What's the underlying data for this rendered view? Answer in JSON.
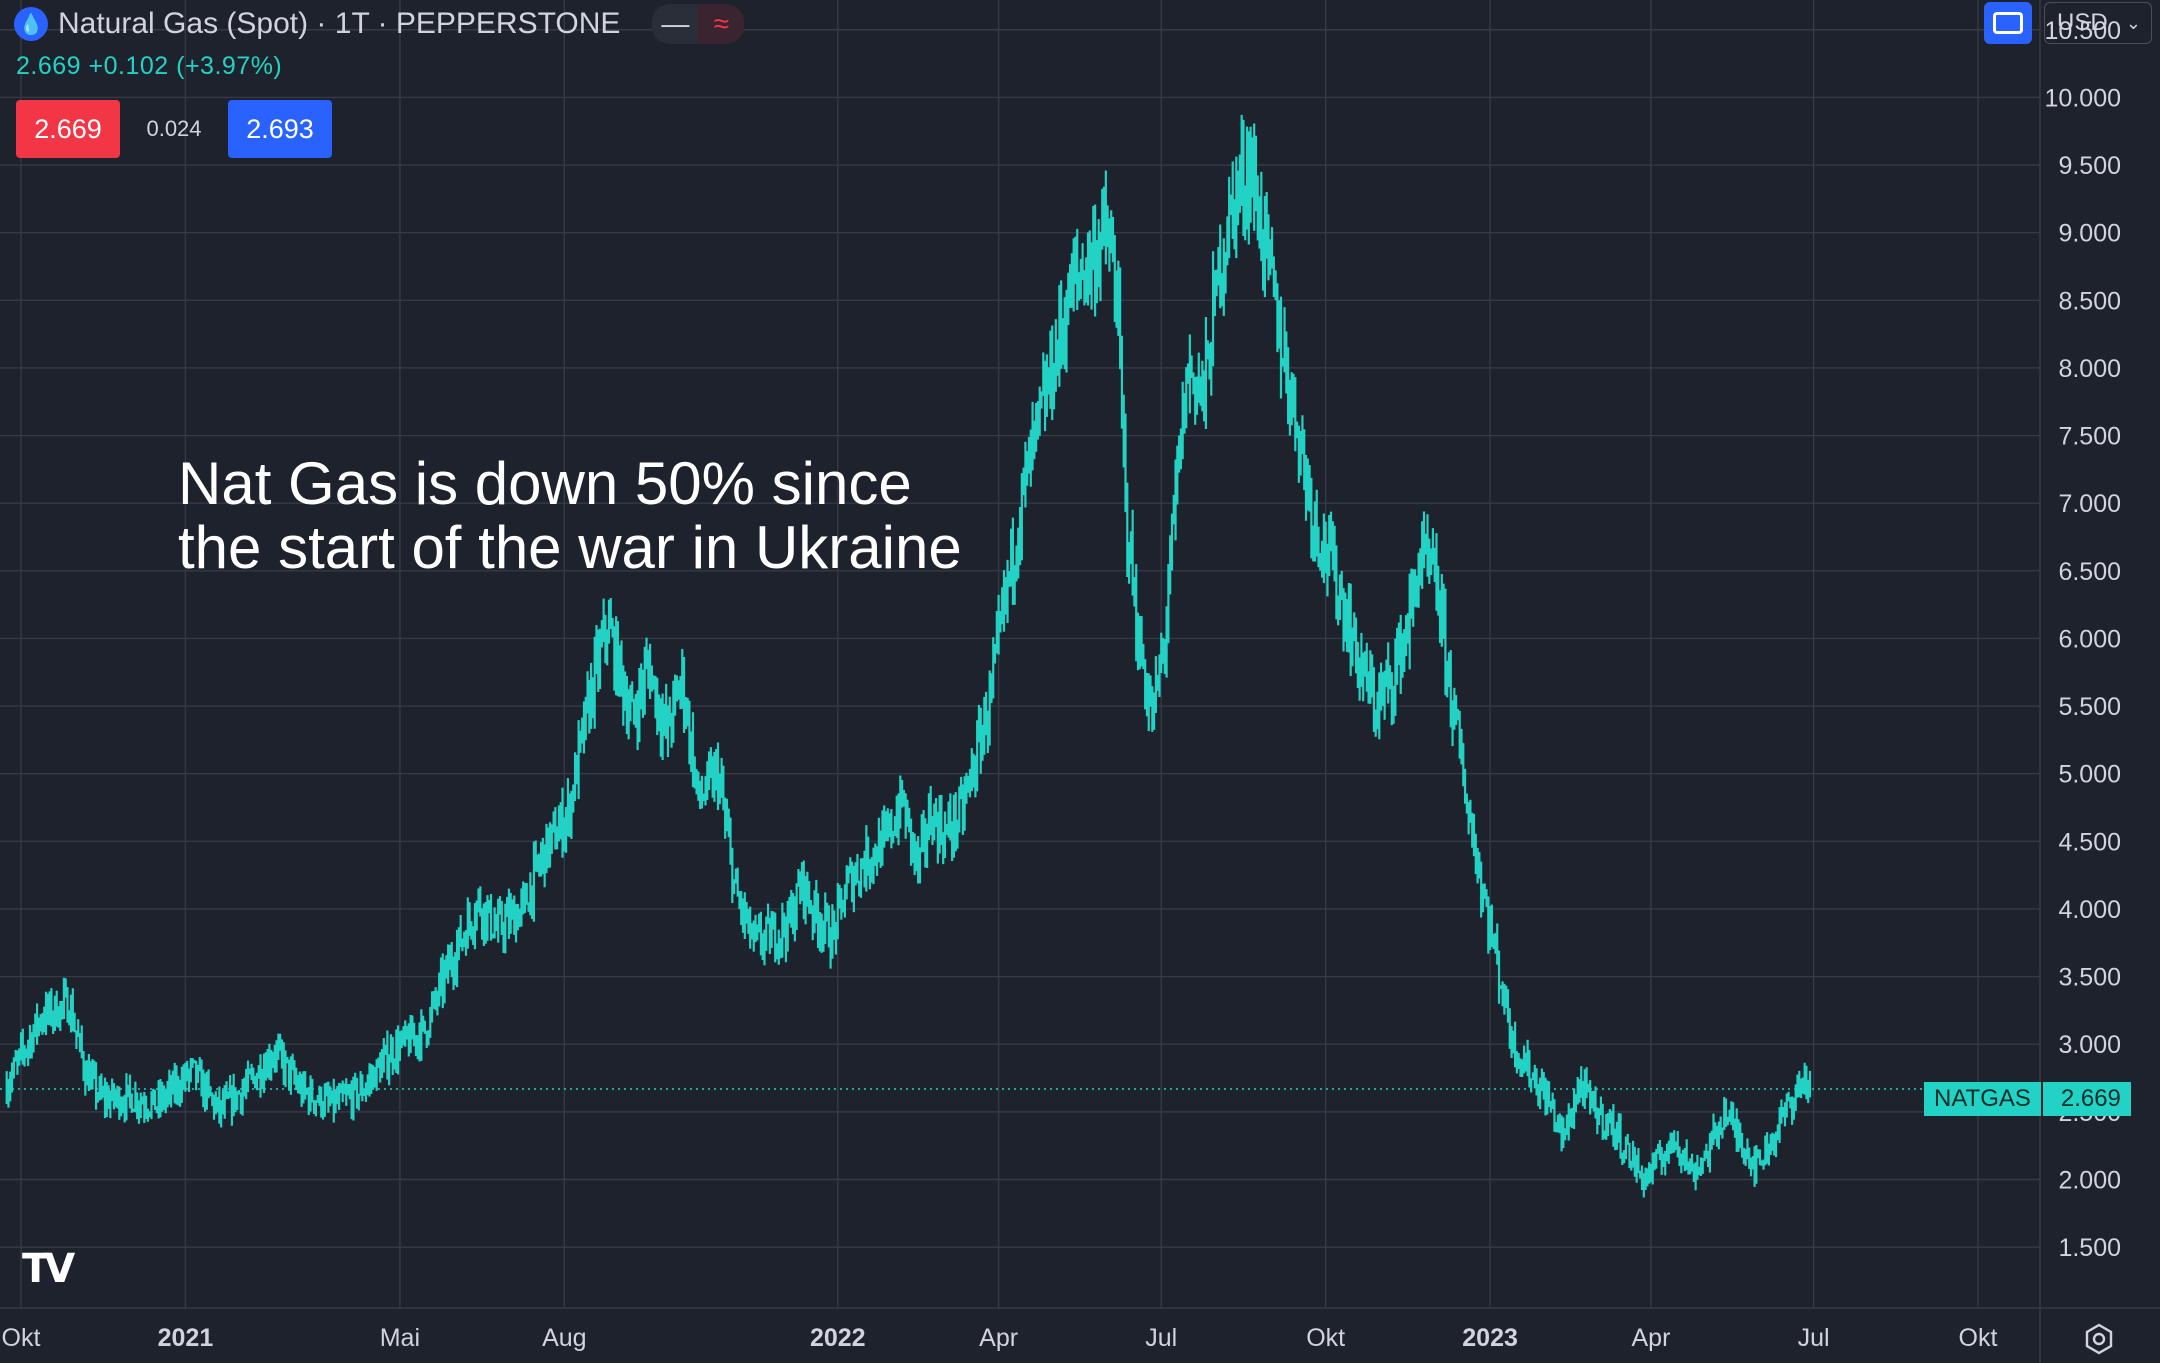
{
  "header": {
    "symbol_icon": "flame-drop-icon",
    "title": "Natural Gas (Spot) · 1T · PEPPERSTONE",
    "change_text": "2.669  +0.102 (+3.97%)",
    "sell_price": "2.669",
    "spread": "0.024",
    "buy_price": "2.693"
  },
  "annotation": {
    "line1": "Nat Gas is down 50% since",
    "line2": "the start of the war in Ukraine"
  },
  "toolbar": {
    "currency": "USD",
    "currency_chevron": "⌄",
    "fit_icon": "auto-fit-icon"
  },
  "last_price_tag": {
    "symbol": "NATGAS",
    "value": "2.669"
  },
  "logo": "TV",
  "colors": {
    "background": "#1e222d",
    "line": "#22d3c5",
    "sell": "#f23645",
    "buy": "#2962ff",
    "grid": "#363a45"
  },
  "chart_data": {
    "type": "line",
    "series": [
      {
        "name": "NATGAS",
        "x": [
          "2020-09-23",
          "2020-10-12",
          "2020-10-28",
          "2020-11-06",
          "2020-11-15",
          "2020-12-04",
          "2020-12-16",
          "2021-01-05",
          "2021-01-20",
          "2021-02-05",
          "2021-02-20",
          "2021-03-07",
          "2021-03-24",
          "2021-04-09",
          "2021-04-27",
          "2021-05-15",
          "2021-05-29",
          "2021-06-14",
          "2021-06-24",
          "2021-07-09",
          "2021-07-20",
          "2021-08-03",
          "2021-08-16",
          "2021-08-25",
          "2021-09-08",
          "2021-09-17",
          "2021-09-27",
          "2021-10-06",
          "2021-10-15",
          "2021-10-26",
          "2021-11-05",
          "2021-11-15",
          "2021-11-25",
          "2021-12-05",
          "2021-12-12",
          "2021-12-18",
          "2021-12-29",
          "2022-01-07",
          "2022-01-19",
          "2022-01-28",
          "2022-02-06",
          "2022-02-15",
          "2022-02-22",
          "2022-03-02",
          "2022-03-11",
          "2022-03-19",
          "2022-03-28",
          "2022-04-06",
          "2022-04-15",
          "2022-04-24",
          "2022-05-03",
          "2022-05-12",
          "2022-05-22",
          "2022-05-31",
          "2022-06-06",
          "2022-06-11",
          "2022-06-18",
          "2022-06-26",
          "2022-07-03",
          "2022-07-10",
          "2022-07-16",
          "2022-07-25",
          "2022-08-03",
          "2022-08-12",
          "2022-08-20",
          "2022-08-28",
          "2022-09-06",
          "2022-09-15",
          "2022-09-24",
          "2022-10-03",
          "2022-10-12",
          "2022-10-20",
          "2022-10-29",
          "2022-11-07",
          "2022-11-16",
          "2022-11-23",
          "2022-12-02",
          "2022-12-10",
          "2022-12-19",
          "2022-12-27",
          "2023-01-05",
          "2023-01-14",
          "2023-01-23",
          "2023-02-02",
          "2023-02-11",
          "2023-02-20",
          "2023-03-01",
          "2023-03-10",
          "2023-03-19",
          "2023-03-28",
          "2023-04-06",
          "2023-04-15",
          "2023-04-24",
          "2023-05-03",
          "2023-05-12",
          "2023-05-21",
          "2023-05-30",
          "2023-06-08",
          "2023-06-17",
          "2023-06-26",
          "2023-06-29"
        ],
        "y": [
          2.7,
          3.2,
          3.3,
          2.8,
          2.6,
          2.6,
          2.55,
          2.8,
          2.5,
          2.7,
          2.95,
          2.65,
          2.55,
          2.65,
          2.95,
          3.1,
          3.6,
          4.05,
          3.85,
          4.0,
          4.4,
          4.7,
          5.6,
          6.1,
          5.4,
          5.8,
          5.3,
          5.7,
          4.8,
          5.0,
          4.1,
          3.75,
          3.8,
          3.9,
          4.2,
          4.0,
          3.8,
          4.2,
          4.4,
          4.5,
          4.8,
          4.3,
          4.7,
          4.55,
          4.7,
          5.1,
          5.6,
          6.4,
          7.1,
          7.6,
          8.1,
          8.6,
          8.8,
          9.0,
          8.6,
          7.0,
          6.0,
          5.4,
          6.0,
          7.2,
          8.0,
          7.8,
          8.8,
          9.3,
          9.5,
          8.9,
          8.2,
          7.6,
          6.9,
          6.6,
          6.2,
          5.8,
          5.5,
          5.7,
          6.1,
          6.6,
          6.4,
          5.6,
          4.8,
          4.2,
          3.6,
          3.0,
          2.8,
          2.6,
          2.3,
          2.7,
          2.5,
          2.4,
          2.2,
          2.0,
          2.15,
          2.3,
          2.05,
          2.2,
          2.5,
          2.3,
          2.1,
          2.3,
          2.55,
          2.75,
          2.669
        ]
      }
    ],
    "ylim": [
      1.05,
      10.72
    ],
    "y_ticks": [
      "1.500",
      "2.000",
      "2.500",
      "3.000",
      "3.500",
      "4.000",
      "4.500",
      "5.000",
      "5.500",
      "6.000",
      "6.500",
      "7.000",
      "7.500",
      "8.000",
      "8.500",
      "9.000",
      "9.500",
      "10.000",
      "10.500"
    ],
    "x_ticks": [
      {
        "date": "2020-10-01",
        "label": "Okt",
        "bold": false
      },
      {
        "date": "2021-01-01",
        "label": "2021",
        "bold": true
      },
      {
        "date": "2021-05-01",
        "label": "Mai",
        "bold": false
      },
      {
        "date": "2021-08-01",
        "label": "Aug",
        "bold": false
      },
      {
        "date": "2022-01-01",
        "label": "2022",
        "bold": true
      },
      {
        "date": "2022-04-01",
        "label": "Apr",
        "bold": false
      },
      {
        "date": "2022-07-01",
        "label": "Jul",
        "bold": false
      },
      {
        "date": "2022-10-01",
        "label": "Okt",
        "bold": false
      },
      {
        "date": "2023-01-01",
        "label": "2023",
        "bold": true
      },
      {
        "date": "2023-04-01",
        "label": "Apr",
        "bold": false
      },
      {
        "date": "2023-07-01",
        "label": "Jul",
        "bold": false
      },
      {
        "date": "2023-10-01",
        "label": "Okt",
        "bold": false
      }
    ],
    "last_value": 2.669,
    "grid": true
  }
}
